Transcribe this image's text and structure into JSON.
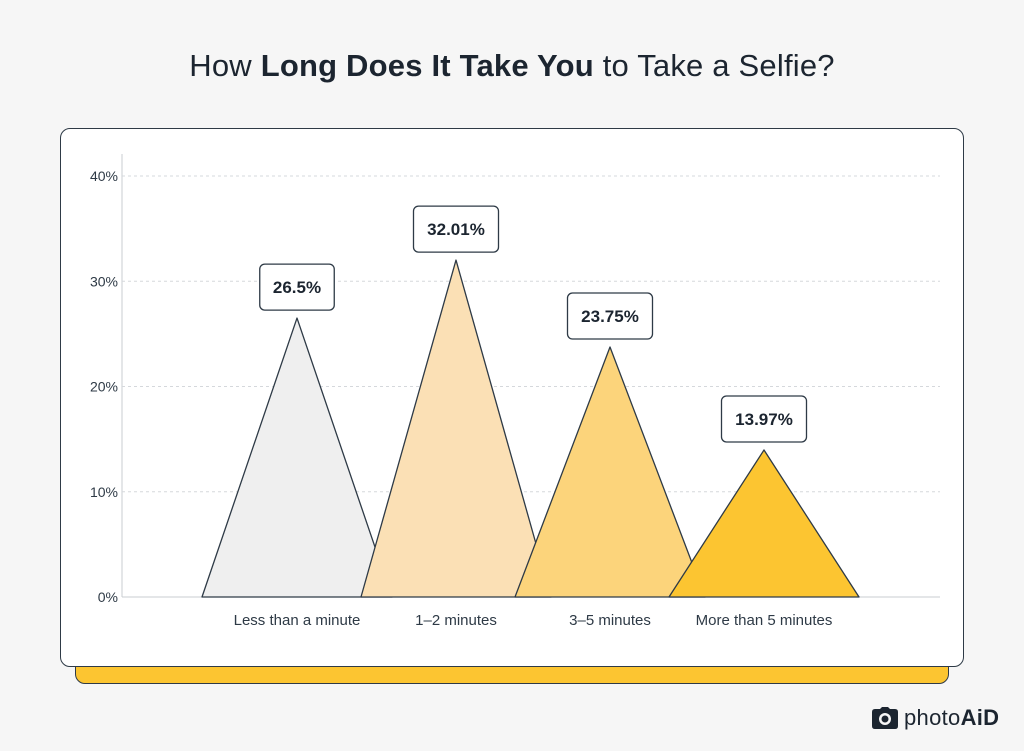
{
  "title": {
    "part1": "How ",
    "bold": "Long Does It Take You",
    "part2": " to Take a Selfie?"
  },
  "brand": {
    "name_prefix": "photo",
    "name_bold": "AiD"
  },
  "colors": {
    "accent": "#fcc531",
    "outline": "#2e3a46",
    "background": "#f6f6f6"
  },
  "chart_data": {
    "type": "bar",
    "shape": "triangle",
    "title": "How Long Does It Take You to Take a Selfie?",
    "categories": [
      "Less than a minute",
      "1–2 minutes",
      "3–5 minutes",
      "More than 5 minutes"
    ],
    "values": [
      26.5,
      32.01,
      23.75,
      13.97
    ],
    "data_labels": [
      "26.5%",
      "32.01%",
      "23.75%",
      "13.97%"
    ],
    "colors": [
      "#efefef",
      "#fbe0b5",
      "#fcd47b",
      "#fcc531"
    ],
    "ylim": [
      0,
      40
    ],
    "yticks": [
      0,
      10,
      20,
      30,
      40
    ],
    "ytick_labels": [
      "0%",
      "10%",
      "20%",
      "30%",
      "40%"
    ],
    "grid": true,
    "xlabel": "",
    "ylabel": ""
  }
}
